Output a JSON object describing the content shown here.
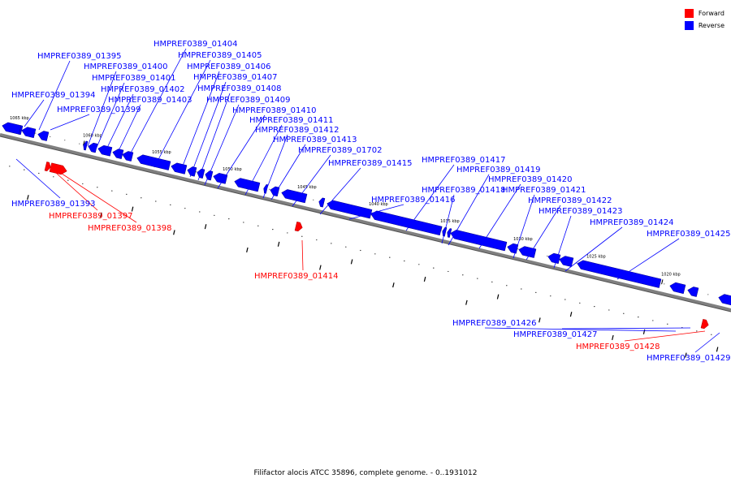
{
  "caption": "Filifactor alocis ATCC 35896, complete genome. - 0..1931012",
  "legend": [
    {
      "label": "Forward",
      "color": "#ff0000"
    },
    {
      "label": "Reverse",
      "color": "#0000ff"
    }
  ],
  "colors": {
    "forward": "#ff0000",
    "reverse": "#0000ff",
    "backbone": "#808080"
  },
  "scale": {
    "label_texts": [
      "1065 kbp",
      "1060 kbp",
      "1055 kbp",
      "1050 kbp",
      "1045 kbp",
      "1040 kbp",
      "1035 kbp",
      "1030 kbp",
      "1025 kbp",
      "1020 kbp"
    ]
  },
  "genes": [
    {
      "id": "HMPREF0389_01393",
      "strand": "reverse"
    },
    {
      "id": "HMPREF0389_01394",
      "strand": "reverse"
    },
    {
      "id": "HMPREF0389_01395",
      "strand": "reverse"
    },
    {
      "id": "HMPREF0389_01397",
      "strand": "forward"
    },
    {
      "id": "HMPREF0389_01398",
      "strand": "forward"
    },
    {
      "id": "HMPREF0389_01399",
      "strand": "reverse"
    },
    {
      "id": "HMPREF0389_01400",
      "strand": "reverse"
    },
    {
      "id": "HMPREF0389_01401",
      "strand": "reverse"
    },
    {
      "id": "HMPREF0389_01402",
      "strand": "reverse"
    },
    {
      "id": "HMPREF0389_01403",
      "strand": "reverse"
    },
    {
      "id": "HMPREF0389_01404",
      "strand": "reverse"
    },
    {
      "id": "HMPREF0389_01405",
      "strand": "reverse"
    },
    {
      "id": "HMPREF0389_01406",
      "strand": "reverse"
    },
    {
      "id": "HMPREF0389_01407",
      "strand": "reverse"
    },
    {
      "id": "HMPREF0389_01408",
      "strand": "reverse"
    },
    {
      "id": "HMPREF0389_01409",
      "strand": "reverse"
    },
    {
      "id": "HMPREF0389_01410",
      "strand": "reverse"
    },
    {
      "id": "HMPREF0389_01411",
      "strand": "reverse"
    },
    {
      "id": "HMPREF0389_01412",
      "strand": "reverse"
    },
    {
      "id": "HMPREF0389_01413",
      "strand": "reverse"
    },
    {
      "id": "HMPREF0389_01702",
      "strand": "reverse"
    },
    {
      "id": "HMPREF0389_01414",
      "strand": "forward"
    },
    {
      "id": "HMPREF0389_01415",
      "strand": "reverse"
    },
    {
      "id": "HMPREF0389_01416",
      "strand": "reverse"
    },
    {
      "id": "HMPREF0389_01417",
      "strand": "reverse"
    },
    {
      "id": "HMPREF0389_01418",
      "strand": "reverse"
    },
    {
      "id": "HMPREF0389_01419",
      "strand": "reverse"
    },
    {
      "id": "HMPREF0389_01420",
      "strand": "reverse"
    },
    {
      "id": "HMPREF0389_01421",
      "strand": "reverse"
    },
    {
      "id": "HMPREF0389_01422",
      "strand": "reverse"
    },
    {
      "id": "HMPREF0389_01423",
      "strand": "reverse"
    },
    {
      "id": "HMPREF0389_01424",
      "strand": "reverse"
    },
    {
      "id": "HMPREF0389_01425",
      "strand": "reverse"
    },
    {
      "id": "HMPREF0389_01426",
      "strand": "reverse"
    },
    {
      "id": "HMPREF0389_01427",
      "strand": "reverse"
    },
    {
      "id": "HMPREF0389_01428",
      "strand": "forward"
    },
    {
      "id": "HMPREF0389_01429",
      "strand": "reverse"
    }
  ]
}
